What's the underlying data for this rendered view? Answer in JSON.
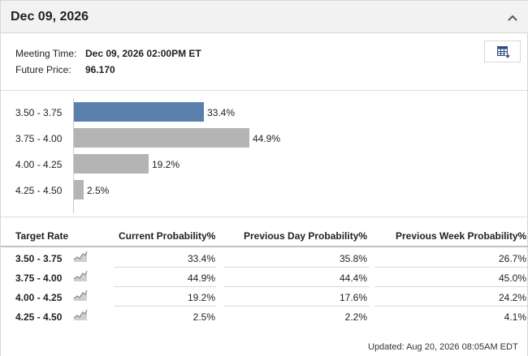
{
  "header": {
    "title": "Dec 09, 2026"
  },
  "meeting": {
    "time_label": "Meeting Time:",
    "time_value": "Dec 09, 2026 02:00PM ET",
    "price_label": "Future Price:",
    "price_value": "96.170"
  },
  "icons": {
    "collapse": "chevron-up-icon",
    "table_view": "table-grid-plus-icon",
    "history": "sparkline-chart-icon"
  },
  "colors": {
    "highlight_bar": "#5b7fad",
    "default_bar": "#b4b4b4"
  },
  "chart_data": {
    "type": "bar",
    "orientation": "horizontal",
    "categories": [
      "3.50 - 3.75",
      "3.75 - 4.00",
      "4.00 - 4.25",
      "4.25 - 4.50"
    ],
    "values": [
      33.4,
      44.9,
      19.2,
      2.5
    ],
    "value_labels": [
      "33.4%",
      "44.9%",
      "19.2%",
      "2.5%"
    ],
    "highlighted_index": 0,
    "xlim": [
      0,
      100
    ],
    "grid": false,
    "legend": "none"
  },
  "table": {
    "headers": {
      "target": "Target Rate",
      "current": "Current Probability%",
      "prev_day": "Previous Day Probability%",
      "prev_week": "Previous Week Probability%"
    },
    "rows": [
      {
        "target": "3.50 - 3.75",
        "current": "33.4%",
        "prev_day": "35.8%",
        "prev_week": "26.7%"
      },
      {
        "target": "3.75 - 4.00",
        "current": "44.9%",
        "prev_day": "44.4%",
        "prev_week": "45.0%"
      },
      {
        "target": "4.00 - 4.25",
        "current": "19.2%",
        "prev_day": "17.6%",
        "prev_week": "24.2%"
      },
      {
        "target": "4.25 - 4.50",
        "current": "2.5%",
        "prev_day": "2.2%",
        "prev_week": "4.1%"
      }
    ]
  },
  "footer": {
    "updated": "Updated: Aug 20, 2026 08:05AM EDT"
  }
}
